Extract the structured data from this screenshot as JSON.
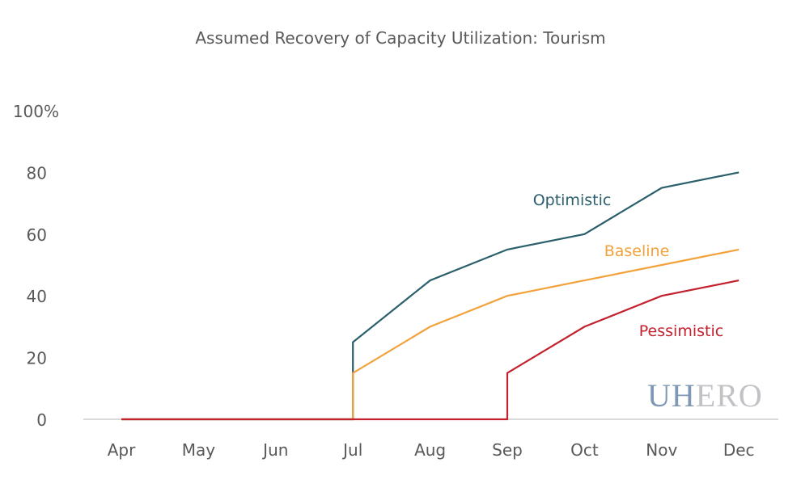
{
  "chart_data": {
    "type": "line",
    "title": "Assumed Recovery of Capacity Utilization: Tourism",
    "categories": [
      "Apr",
      "May",
      "Jun",
      "Jul",
      "Aug",
      "Sep",
      "Oct",
      "Nov",
      "Dec"
    ],
    "ylim": [
      0,
      100
    ],
    "yticks": [
      {
        "value": 0,
        "label": "0"
      },
      {
        "value": 20,
        "label": "20"
      },
      {
        "value": 40,
        "label": "40"
      },
      {
        "value": 60,
        "label": "60"
      },
      {
        "value": 80,
        "label": "80"
      },
      {
        "value": 100,
        "label": "100%"
      }
    ],
    "grid": false,
    "series": [
      {
        "name": "Optimistic",
        "color": "#2b5f6c",
        "points": [
          [
            "Apr",
            0
          ],
          [
            "May",
            0
          ],
          [
            "Jun",
            0
          ],
          [
            "Jul",
            0
          ],
          [
            "Jul",
            25
          ],
          [
            "Aug",
            45
          ],
          [
            "Sep",
            55
          ],
          [
            "Oct",
            60
          ],
          [
            "Nov",
            75
          ],
          [
            "Dec",
            80
          ]
        ]
      },
      {
        "name": "Baseline",
        "color": "#f2a23a",
        "points": [
          [
            "Apr",
            0
          ],
          [
            "May",
            0
          ],
          [
            "Jun",
            0
          ],
          [
            "Jul",
            0
          ],
          [
            "Jul",
            15
          ],
          [
            "Aug",
            30
          ],
          [
            "Sep",
            40
          ],
          [
            "Oct",
            45
          ],
          [
            "Nov",
            50
          ],
          [
            "Dec",
            55
          ]
        ]
      },
      {
        "name": "Pessimistic",
        "color": "#c4212e",
        "points": [
          [
            "Apr",
            0
          ],
          [
            "May",
            0
          ],
          [
            "Jun",
            0
          ],
          [
            "Jul",
            0
          ],
          [
            "Aug",
            0
          ],
          [
            "Sep",
            0
          ],
          [
            "Sep",
            15
          ],
          [
            "Oct",
            30
          ],
          [
            "Nov",
            40
          ],
          [
            "Dec",
            45
          ]
        ]
      }
    ]
  },
  "logo": {
    "text_part1": "UH",
    "text_part2": "ERO",
    "color1": "#7f98b5",
    "color2": "#c0c2c6"
  },
  "axis_color": "#d9d9d9",
  "text_color": "#595959"
}
